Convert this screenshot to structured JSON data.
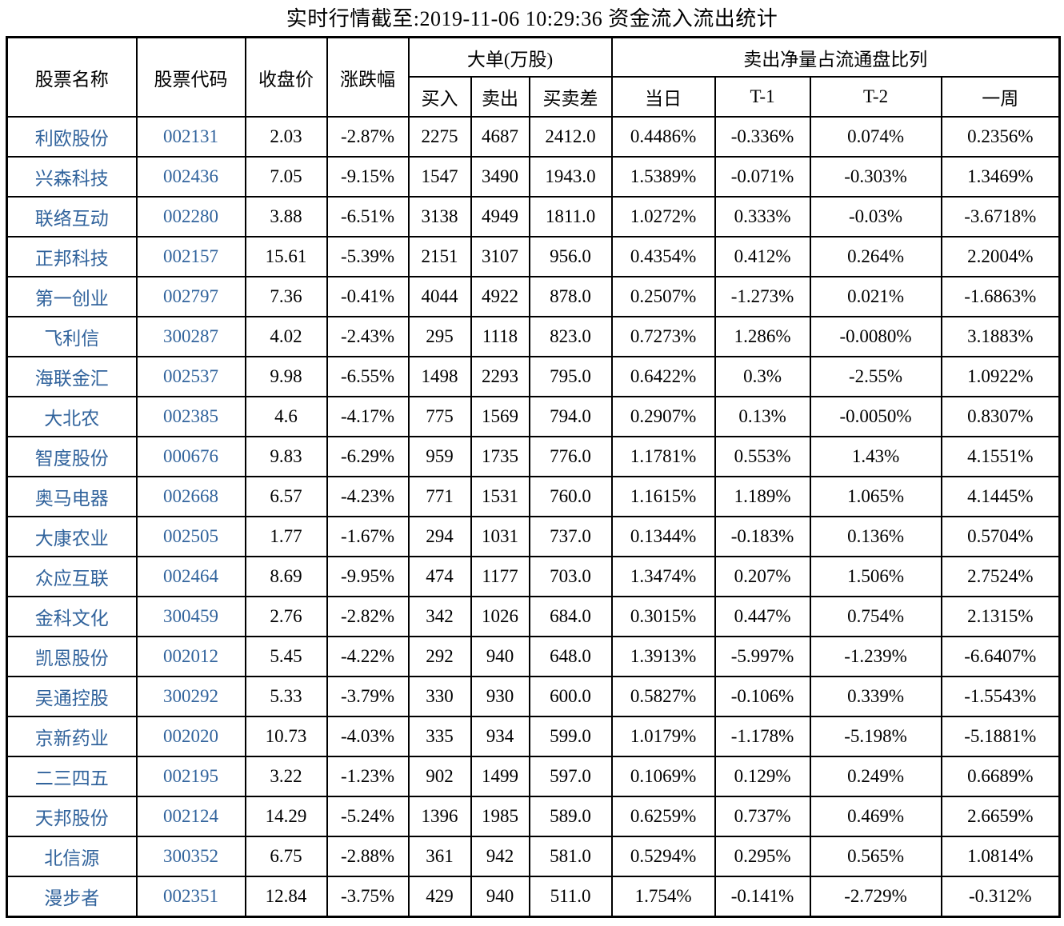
{
  "chart_data": {
    "type": "table",
    "title": "实时行情截至:2019-11-06 10:29:36 资金流入流出统计",
    "column_groups": [
      {
        "label": "大单(万股)",
        "span": [
          "买入",
          "卖出",
          "买卖差"
        ]
      },
      {
        "label": "卖出净量占流通盘比列",
        "span": [
          "当日",
          "T-1",
          "T-2",
          "一周"
        ]
      }
    ],
    "columns": [
      "股票名称",
      "股票代码",
      "收盘价",
      "涨跌幅",
      "买入",
      "卖出",
      "买卖差",
      "当日",
      "T-1",
      "T-2",
      "一周"
    ],
    "rows": [
      [
        "利欧股份",
        "002131",
        "2.03",
        "-2.87%",
        "2275",
        "4687",
        "2412.0",
        "0.4486%",
        "-0.336%",
        "0.074%",
        "0.2356%"
      ],
      [
        "兴森科技",
        "002436",
        "7.05",
        "-9.15%",
        "1547",
        "3490",
        "1943.0",
        "1.5389%",
        "-0.071%",
        "-0.303%",
        "1.3469%"
      ],
      [
        "联络互动",
        "002280",
        "3.88",
        "-6.51%",
        "3138",
        "4949",
        "1811.0",
        "1.0272%",
        "0.333%",
        "-0.03%",
        "-3.6718%"
      ],
      [
        "正邦科技",
        "002157",
        "15.61",
        "-5.39%",
        "2151",
        "3107",
        "956.0",
        "0.4354%",
        "0.412%",
        "0.264%",
        "2.2004%"
      ],
      [
        "第一创业",
        "002797",
        "7.36",
        "-0.41%",
        "4044",
        "4922",
        "878.0",
        "0.2507%",
        "-1.273%",
        "0.021%",
        "-1.6863%"
      ],
      [
        "飞利信",
        "300287",
        "4.02",
        "-2.43%",
        "295",
        "1118",
        "823.0",
        "0.7273%",
        "1.286%",
        "-0.0080%",
        "3.1883%"
      ],
      [
        "海联金汇",
        "002537",
        "9.98",
        "-6.55%",
        "1498",
        "2293",
        "795.0",
        "0.6422%",
        "0.3%",
        "-2.55%",
        "1.0922%"
      ],
      [
        "大北农",
        "002385",
        "4.6",
        "-4.17%",
        "775",
        "1569",
        "794.0",
        "0.2907%",
        "0.13%",
        "-0.0050%",
        "0.8307%"
      ],
      [
        "智度股份",
        "000676",
        "9.83",
        "-6.29%",
        "959",
        "1735",
        "776.0",
        "1.1781%",
        "0.553%",
        "1.43%",
        "4.1551%"
      ],
      [
        "奥马电器",
        "002668",
        "6.57",
        "-4.23%",
        "771",
        "1531",
        "760.0",
        "1.1615%",
        "1.189%",
        "1.065%",
        "4.1445%"
      ],
      [
        "大康农业",
        "002505",
        "1.77",
        "-1.67%",
        "294",
        "1031",
        "737.0",
        "0.1344%",
        "-0.183%",
        "0.136%",
        "0.5704%"
      ],
      [
        "众应互联",
        "002464",
        "8.69",
        "-9.95%",
        "474",
        "1177",
        "703.0",
        "1.3474%",
        "0.207%",
        "1.506%",
        "2.7524%"
      ],
      [
        "金科文化",
        "300459",
        "2.76",
        "-2.82%",
        "342",
        "1026",
        "684.0",
        "0.3015%",
        "0.447%",
        "0.754%",
        "2.1315%"
      ],
      [
        "凯恩股份",
        "002012",
        "5.45",
        "-4.22%",
        "292",
        "940",
        "648.0",
        "1.3913%",
        "-5.997%",
        "-1.239%",
        "-6.6407%"
      ],
      [
        "吴通控股",
        "300292",
        "5.33",
        "-3.79%",
        "330",
        "930",
        "600.0",
        "0.5827%",
        "-0.106%",
        "0.339%",
        "-1.5543%"
      ],
      [
        "京新药业",
        "002020",
        "10.73",
        "-4.03%",
        "335",
        "934",
        "599.0",
        "1.0179%",
        "-1.178%",
        "-5.198%",
        "-5.1881%"
      ],
      [
        "二三四五",
        "002195",
        "3.22",
        "-1.23%",
        "902",
        "1499",
        "597.0",
        "0.1069%",
        "0.129%",
        "0.249%",
        "0.6689%"
      ],
      [
        "天邦股份",
        "002124",
        "14.29",
        "-5.24%",
        "1396",
        "1985",
        "589.0",
        "0.6259%",
        "0.737%",
        "0.469%",
        "2.6659%"
      ],
      [
        "北信源",
        "300352",
        "6.75",
        "-2.88%",
        "361",
        "942",
        "581.0",
        "0.5294%",
        "0.295%",
        "0.565%",
        "1.0814%"
      ],
      [
        "漫步者",
        "002351",
        "12.84",
        "-3.75%",
        "429",
        "940",
        "511.0",
        "1.754%",
        "-0.141%",
        "-2.729%",
        "-0.312%"
      ]
    ]
  },
  "colors": {
    "link_blue": "#31639C",
    "border": "#000000",
    "text": "#000000",
    "background": "#FFFFFF"
  }
}
